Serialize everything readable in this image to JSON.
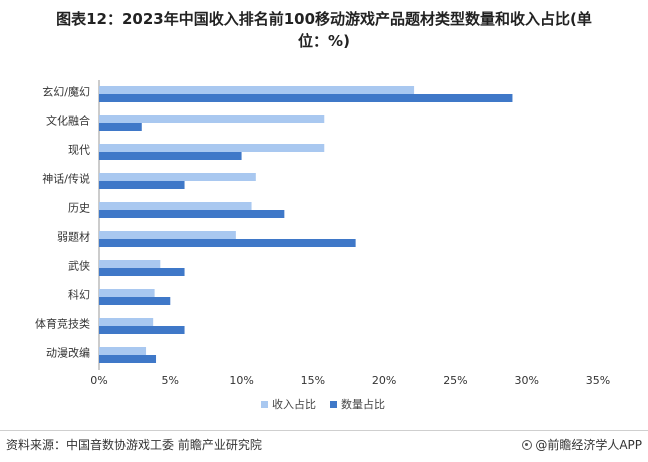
{
  "title": {
    "line1": "图表12：2023年中国收入排名前100移动游戏产品题材类型数量和收入占比(单",
    "line2": "位：%)"
  },
  "chart_data": {
    "type": "bar",
    "orientation": "horizontal",
    "categories": [
      "玄幻/魔幻",
      "文化融合",
      "现代",
      "神话/传说",
      "历史",
      "弱题材",
      "武侠",
      "科幻",
      "体育竞技类",
      "动漫改编"
    ],
    "series": [
      {
        "name": "收入占比",
        "color": "#a9c8f0",
        "values": [
          22.1,
          15.8,
          15.8,
          11.0,
          10.7,
          9.6,
          4.3,
          3.9,
          3.8,
          3.3
        ]
      },
      {
        "name": "数量占比",
        "color": "#3f78c8",
        "values": [
          29.0,
          3.0,
          10.0,
          6.0,
          13.0,
          18.0,
          6.0,
          5.0,
          6.0,
          4.0
        ]
      }
    ],
    "xlim": [
      0,
      35
    ],
    "xticks": [
      "0%",
      "5%",
      "10%",
      "15%",
      "20%",
      "25%",
      "30%",
      "35%"
    ],
    "legend_position": "bottom-center",
    "grid": false
  },
  "footer": {
    "source": "资料来源：中国音数协游戏工委 前瞻产业研究院",
    "brand": "@前瞻经济学人APP"
  }
}
